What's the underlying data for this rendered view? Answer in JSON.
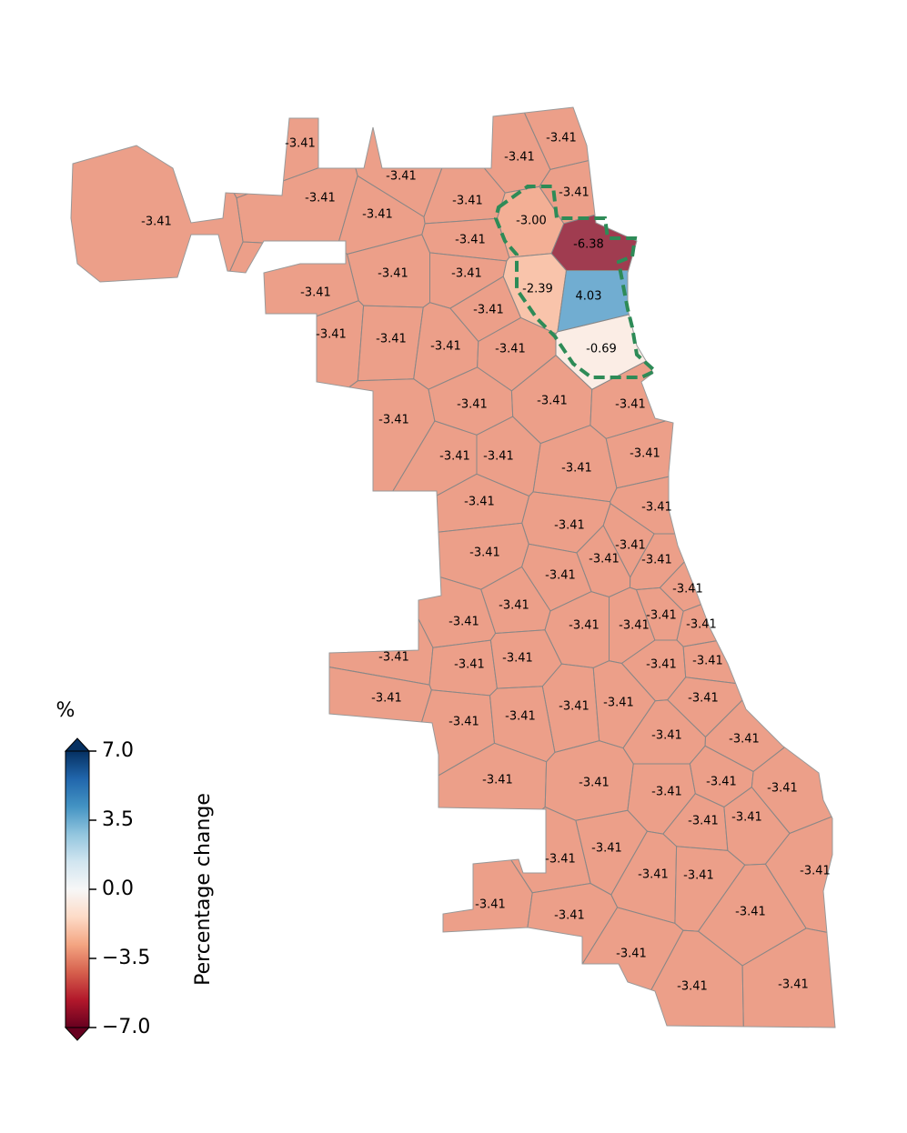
{
  "chart_data": {
    "type": "choropleth",
    "legend_title": "%",
    "colorbar_label": "Percentage change",
    "clim": [
      -7,
      7
    ],
    "cticks": [
      {
        "value": 7,
        "label": "7.0"
      },
      3.5,
      {
        "value": 0,
        "label": "0.0"
      },
      {
        "value": -3.5,
        "label": "−3.5"
      },
      {
        "value": -7,
        "label": "−7.0"
      }
    ],
    "values": [
      -3.41,
      -3.41,
      -3.41,
      -3.41,
      -3.41,
      -3.41,
      -3.41,
      -3.41,
      -3.41,
      -3.0,
      -6.38,
      -3.41,
      -3.41,
      -3.41,
      -3.41,
      -2.39,
      4.03,
      -3.41,
      -3.41,
      -3.41,
      -3.41,
      -3.41,
      -0.69,
      -3.41,
      -3.41,
      -3.41,
      -3.41,
      -3.41,
      -3.41,
      -3.41,
      -3.41,
      -3.41,
      -3.41,
      -3.41,
      -3.41,
      -3.41,
      -3.41,
      -3.41,
      -3.41,
      -3.41,
      -3.41,
      -3.41,
      -3.41,
      -3.41,
      -3.41,
      -3.41,
      -3.41,
      -3.41,
      -3.41,
      -3.41,
      -3.41,
      -3.41,
      -3.41,
      -3.41,
      -3.41,
      -3.41,
      -3.41,
      -3.41,
      -3.41,
      -3.41,
      -3.41,
      -3.41,
      -3.41,
      -3.41,
      -3.41,
      -3.41,
      -3.41,
      -3.41,
      -3.41,
      -3.41,
      -3.41,
      -3.41,
      -3.41,
      -3.41,
      -3.41,
      -3.41,
      -3.41
    ],
    "value_labels": [
      "-3.41",
      "-3.41",
      "-3.41",
      "-3.41",
      "-3.41",
      "-3.41",
      "-3.41",
      "-3.41",
      "-3.41",
      "-3.00",
      "-6.38",
      "-3.41",
      "-3.41",
      "-3.41",
      "-3.41",
      "-2.39",
      "4.03",
      "-3.41",
      "-3.41",
      "-3.41",
      "-3.41",
      "-3.41",
      "-0.69",
      "-3.41",
      "-3.41",
      "-3.41",
      "-3.41",
      "-3.41",
      "-3.41",
      "-3.41",
      "-3.41",
      "-3.41",
      "-3.41",
      "-3.41",
      "-3.41",
      "-3.41",
      "-3.41",
      "-3.41",
      "-3.41",
      "-3.41",
      "-3.41",
      "-3.41",
      "-3.41",
      "-3.41",
      "-3.41",
      "-3.41",
      "-3.41",
      "-3.41",
      "-3.41",
      "-3.41",
      "-3.41",
      "-3.41",
      "-3.41",
      "-3.41",
      "-3.41",
      "-3.41",
      "-3.41",
      "-3.41",
      "-3.41",
      "-3.41",
      "-3.41",
      "-3.41",
      "-3.41",
      "-3.41",
      "-3.41",
      "-3.41",
      "-3.41",
      "-3.41",
      "-3.41",
      "-3.41",
      "-3.41",
      "-3.41",
      "-3.41",
      "-3.41",
      "-3.41",
      "-3.41",
      "-3.41"
    ]
  }
}
